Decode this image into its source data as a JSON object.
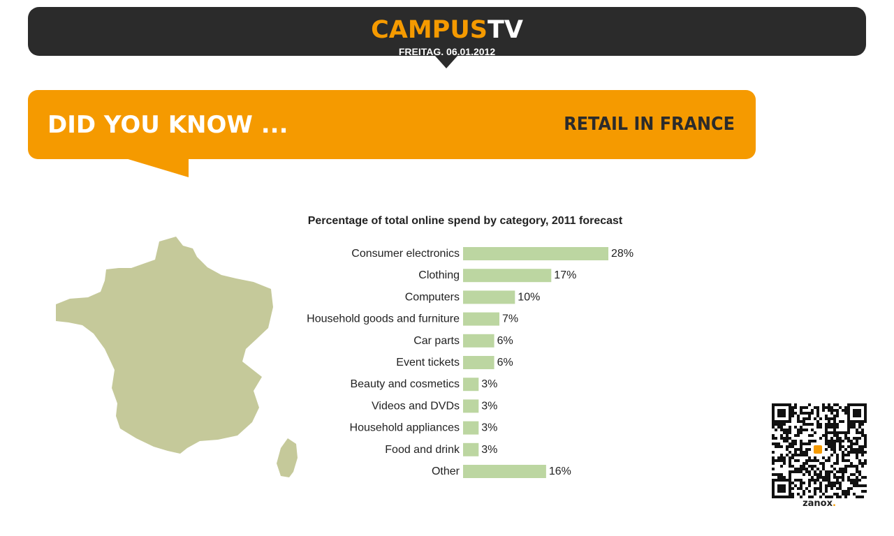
{
  "header": {
    "logo_part1": "CAMPUS",
    "logo_part2": "TV",
    "date": "FREITAG, 06.01.2012",
    "background_color": "#2b2b2b",
    "accent_color": "#f59a00"
  },
  "banner": {
    "left_text": "DID YOU KNOW ...",
    "right_text": "RETAIL IN FRANCE",
    "background_color": "#f59a00"
  },
  "illustration": {
    "map_icon": "france-map-icon",
    "map_color": "#c5c99a"
  },
  "chart_data": {
    "type": "bar",
    "orientation": "horizontal",
    "title": "Percentage of total online spend by category, 2011 forecast",
    "categories": [
      "Consumer electronics",
      "Clothing",
      "Computers",
      "Household goods and furniture",
      "Car parts",
      "Event tickets",
      "Beauty and cosmetics",
      "Videos and DVDs",
      "Household appliances",
      "Food and drink",
      "Other"
    ],
    "values": [
      28,
      17,
      10,
      7,
      6,
      6,
      3,
      3,
      3,
      3,
      16
    ],
    "value_labels": [
      "28%",
      "17%",
      "10%",
      "7%",
      "6%",
      "6%",
      "3%",
      "3%",
      "3%",
      "3%",
      "16%"
    ],
    "unit": "%",
    "bar_color": "#bcd6a1",
    "grid": false,
    "legend": "none"
  },
  "qr": {
    "icon": "qr-code-icon",
    "caption": "zanox",
    "caption_dot": "."
  }
}
